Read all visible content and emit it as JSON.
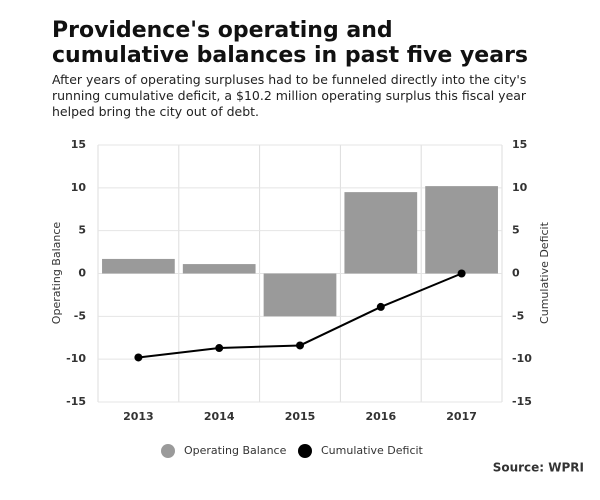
{
  "chart_data": {
    "type": "combo",
    "title": "Providence's operating and cumulative balances in past five years",
    "subtitle": "After years of operating surpluses had to be funneled directly into the city's running cumulative deficit, a $10.2 million operating surplus this fiscal year helped bring the city out of debt.",
    "ylabel": "Operating Balance",
    "y2label": "Cumulative Deficit",
    "source": "Source: WPRI",
    "categories": [
      "2013",
      "2014",
      "2015",
      "2016",
      "2017"
    ],
    "series": [
      {
        "name": "Operating Balance",
        "type": "bar",
        "color": "#9a9a9a",
        "values": [
          1.7,
          1.1,
          -5,
          9.5,
          10.2
        ]
      },
      {
        "name": "Cumulative Deficit",
        "type": "line",
        "axis": "y2",
        "color": "#000000",
        "values": [
          -9.8,
          -8.7,
          -8.4,
          -3.9,
          0
        ]
      }
    ],
    "ylim": [
      -15,
      15
    ],
    "yticks": [
      -15,
      -10,
      -5,
      0,
      5,
      10,
      15
    ],
    "y2lim": [
      -15,
      15
    ],
    "y2ticks": [
      -15,
      -10,
      -5,
      0,
      5,
      10,
      15
    ],
    "grid": true
  }
}
